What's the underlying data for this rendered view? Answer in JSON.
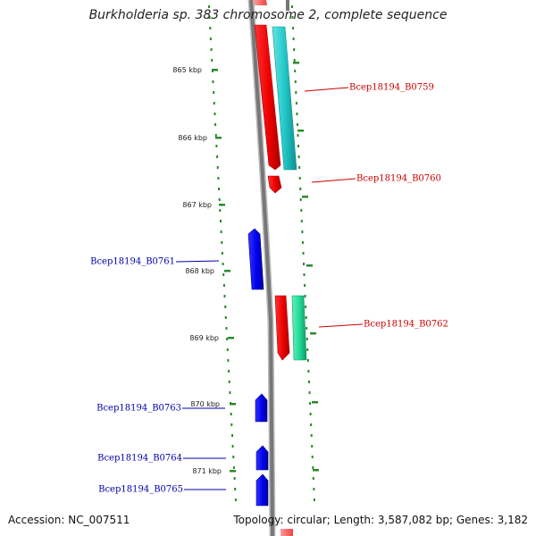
{
  "title": "Burkholderia sp. 383 chromosome 2, complete sequence",
  "accession": "Accession: NC_007511",
  "summary": "Topology: circular; Length: 3,587,082 bp; Genes: 3,182",
  "colors": {
    "reverse_gene": "#0000ee",
    "forward_gene": "#ee0000",
    "cyan_feature": "#22c8c8",
    "green_feature": "#22dd99",
    "dotted_guides": "#2a8a2a",
    "backbone": "#777777",
    "reverse_label": "#0000aa",
    "forward_label": "#cc0000"
  },
  "ticks": [
    {
      "label": "865 kbp"
    },
    {
      "label": "866 kbp"
    },
    {
      "label": "867 kbp"
    },
    {
      "label": "868 kbp"
    },
    {
      "label": "869 kbp"
    },
    {
      "label": "870 kbp"
    },
    {
      "label": "871 kbp"
    }
  ],
  "genes": [
    {
      "name": "Bcep18194_B0759",
      "strand": "forward"
    },
    {
      "name": "Bcep18194_B0760",
      "strand": "forward"
    },
    {
      "name": "Bcep18194_B0761",
      "strand": "reverse"
    },
    {
      "name": "Bcep18194_B0762",
      "strand": "forward"
    },
    {
      "name": "Bcep18194_B0763",
      "strand": "reverse"
    },
    {
      "name": "Bcep18194_B0764",
      "strand": "reverse"
    },
    {
      "name": "Bcep18194_B0765",
      "strand": "reverse"
    }
  ]
}
